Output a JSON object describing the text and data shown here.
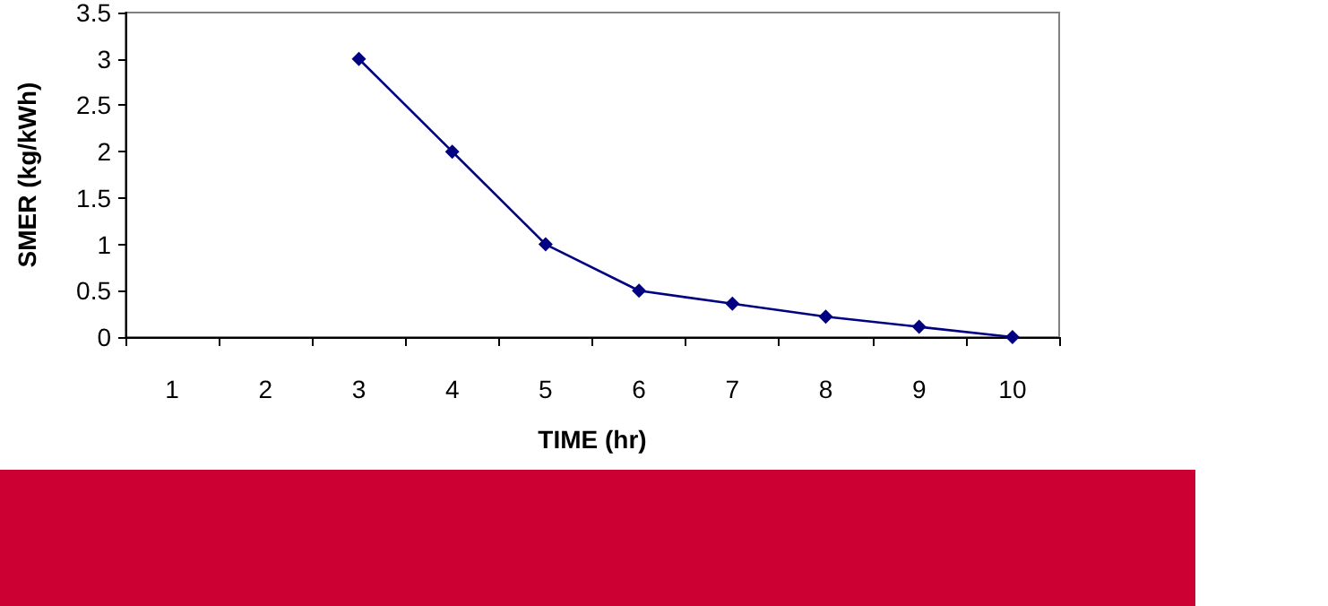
{
  "chart_data": {
    "type": "line",
    "xlabel": "TIME (hr)",
    "ylabel": "SMER (kg/kWh)",
    "categories": [
      "1",
      "2",
      "3",
      "4",
      "5",
      "6",
      "7",
      "8",
      "9",
      "10"
    ],
    "series": [
      {
        "color": "#000080",
        "values": [
          null,
          null,
          3,
          2,
          1,
          0.5,
          0.36,
          0.22,
          0.11,
          0
        ]
      }
    ],
    "ylim": [
      0,
      3.5
    ],
    "yticks": [
      0,
      0.5,
      1,
      1.5,
      2,
      2.5,
      3,
      3.5
    ],
    "grid": false,
    "legend": false,
    "marker": "diamond",
    "line_style": "solid"
  }
}
